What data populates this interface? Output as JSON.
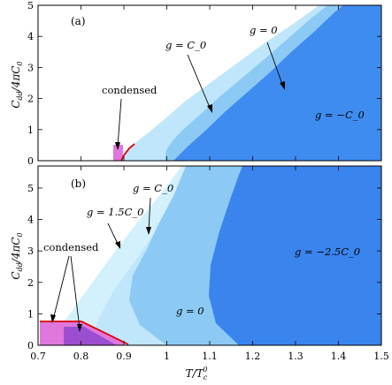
{
  "colors": {
    "region_g_C0": "#bfe6fb",
    "region_g_0": "#8ccaf5",
    "region_g_negC0": "#3f8cf0",
    "region_g_1p5C0": "#d3f0fd",
    "region_g_neg2p5C0": "#3a84ee",
    "condensed": "#e077dc",
    "condensed_dark": "#9b4fd0",
    "boundary": "#e00000",
    "axis": "#000000"
  },
  "figure": {
    "x_axis_label": "T/T",
    "x_axis_label_sub": "c",
    "x_axis_label_sup": "0",
    "y_axis_label": "C",
    "y_axis_label_sub": "dd",
    "y_axis_label_tail": "/4πC",
    "y_axis_label_tail_sub": "0"
  },
  "chart_data": [
    {
      "panel": "(a)",
      "type": "area",
      "xlim": [
        0.7,
        1.5
      ],
      "ylim": [
        0,
        5
      ],
      "x_ticks": [],
      "y_ticks": [
        "0",
        "1",
        "2",
        "3",
        "4",
        "5"
      ],
      "series": [
        {
          "name": "g = C_0",
          "boundary_x": [
            0.905,
            0.93,
            1.0,
            1.1,
            1.2,
            1.3,
            1.4,
            1.47
          ],
          "boundary_y": [
            0.2,
            0.5,
            0.95,
            1.8,
            2.65,
            3.5,
            4.35,
            5.0
          ]
        },
        {
          "name": "g = 0",
          "boundary_x": [
            1.0,
            1.05,
            1.1,
            1.2,
            1.3,
            1.4,
            1.47
          ],
          "boundary_y": [
            0.0,
            0.65,
            1.15,
            2.05,
            2.95,
            3.9,
            5.0
          ]
        },
        {
          "name": "g = −C_0",
          "boundary_x": [
            1.02,
            1.1,
            1.2,
            1.3,
            1.4,
            1.47
          ],
          "boundary_y": [
            0.0,
            0.75,
            1.75,
            2.8,
            3.9,
            5.0
          ]
        }
      ],
      "condensed_region": {
        "x": [
          0.835,
          0.91
        ],
        "y": [
          0.0,
          0.3
        ]
      },
      "annotations": [
        {
          "text": "condensed",
          "x": 0.865,
          "y": 1.0
        },
        {
          "text": "g = C_0",
          "x": 0.99,
          "y": 3.5
        },
        {
          "text": "g = 0",
          "x": 1.22,
          "y": 4.1
        },
        {
          "text": "g = −C_0",
          "x": 1.37,
          "y": 1.4
        }
      ]
    },
    {
      "panel": "(b)",
      "type": "area",
      "xlim": [
        0.7,
        1.5
      ],
      "ylim": [
        0,
        5.7
      ],
      "x_ticks": [
        "0.7",
        "0.8",
        "0.9",
        "1",
        "1.1",
        "1.2",
        "1.3",
        "1.4",
        "1.5"
      ],
      "y_ticks": [
        "0",
        "1",
        "2",
        "3",
        "4",
        "5"
      ],
      "series": [
        {
          "name": "g = 1.5C_0",
          "boundary_x": [
            0.72,
            0.8,
            0.9,
            1.0,
            1.05,
            1.08
          ],
          "boundary_y": [
            0.0,
            1.3,
            2.7,
            4.1,
            4.9,
            5.7
          ]
        },
        {
          "name": "g = C_0",
          "boundary_x": [
            0.83,
            0.88,
            0.95,
            1.02,
            1.08,
            1.12
          ],
          "boundary_y": [
            0.0,
            1.5,
            2.7,
            3.8,
            4.8,
            5.7
          ]
        },
        {
          "name": "g = 0",
          "boundary_x": [
            1.0,
            0.92,
            0.94,
            1.02,
            1.1,
            1.16
          ],
          "boundary_y": [
            0.0,
            0.8,
            2.0,
            3.3,
            4.6,
            5.7
          ]
        },
        {
          "name": "g = −2.5C_0",
          "boundary_x": [
            1.24,
            1.14,
            1.12,
            1.16,
            1.22,
            1.27
          ],
          "boundary_y": [
            0.0,
            1.0,
            2.0,
            3.2,
            4.5,
            5.7
          ]
        }
      ],
      "condensed_region": {
        "x": [
          0.72,
          0.91
        ],
        "y": [
          0.0,
          0.75
        ]
      },
      "annotations": [
        {
          "text": "g = C_0",
          "x": 0.95,
          "y": 5.0
        },
        {
          "text": "g = 1.5C_0",
          "x": 0.75,
          "y": 4.3
        },
        {
          "text": "condensed",
          "x": 0.78,
          "y": 3.0
        },
        {
          "text": "g = −2.5C_0",
          "x": 1.35,
          "y": 2.9
        },
        {
          "text": "g = 0",
          "x": 1.01,
          "y": 1.0
        }
      ]
    }
  ]
}
